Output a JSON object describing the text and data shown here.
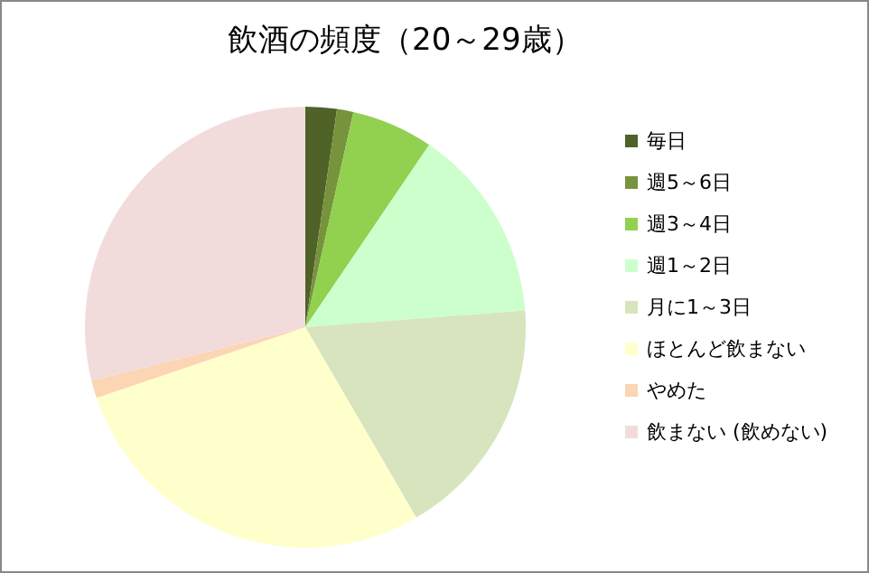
{
  "chart_data": {
    "type": "pie",
    "title": "飲酒の頻度（20～29歳）",
    "categories": [
      "毎日",
      "週5～6日",
      "週3～4日",
      "週1～2日",
      "月に1～3日",
      "ほとんど飲まない",
      "やめた",
      "飲まない (飲めない)"
    ],
    "values": [
      2.3,
      1.2,
      6.0,
      14.3,
      17.8,
      28.2,
      1.3,
      28.9
    ],
    "colors": [
      "#4f6228",
      "#77933c",
      "#92d050",
      "#ccffcc",
      "#d7e4bd",
      "#ffffcc",
      "#fcd5b5",
      "#f2dcdb"
    ],
    "legend": "right"
  }
}
